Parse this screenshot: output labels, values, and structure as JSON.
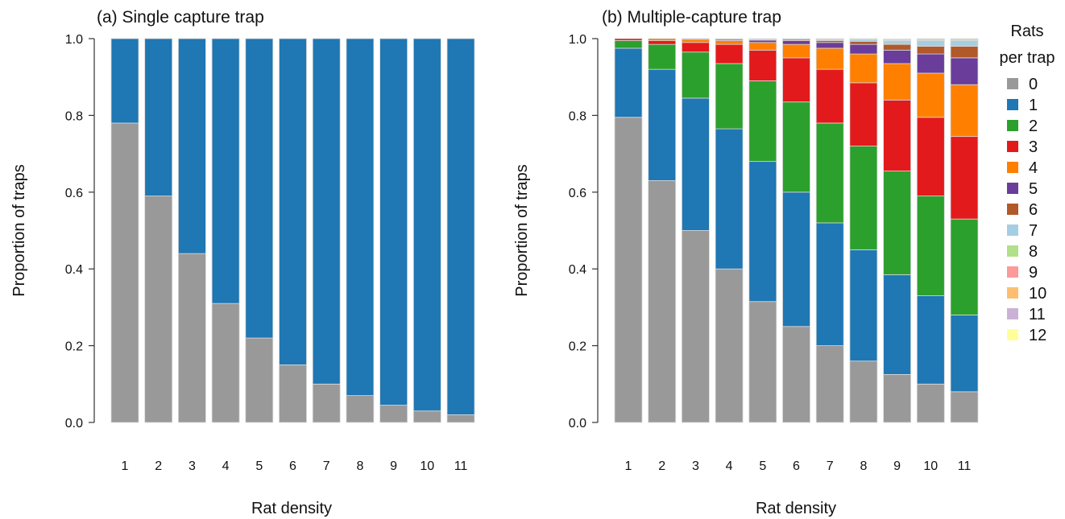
{
  "chart_data": [
    {
      "type": "bar",
      "stacked": true,
      "title": "(a) Single capture trap",
      "xlabel": "Rat density",
      "ylabel": "Proportion of traps",
      "ylim": [
        0,
        1
      ],
      "yticks": [
        "0.0",
        "0.2",
        "0.4",
        "0.6",
        "0.8",
        "1.0"
      ],
      "categories": [
        "1",
        "2",
        "3",
        "4",
        "5",
        "6",
        "7",
        "8",
        "9",
        "10",
        "11"
      ],
      "series": [
        {
          "name": "0",
          "color": "#999999",
          "values": [
            0.78,
            0.59,
            0.44,
            0.31,
            0.22,
            0.15,
            0.1,
            0.07,
            0.045,
            0.03,
            0.02
          ]
        },
        {
          "name": "1",
          "color": "#1f77b4",
          "values": [
            0.22,
            0.41,
            0.56,
            0.69,
            0.78,
            0.85,
            0.9,
            0.93,
            0.955,
            0.97,
            0.98
          ]
        }
      ]
    },
    {
      "type": "bar",
      "stacked": true,
      "title": "(b) Multiple-capture trap",
      "xlabel": "Rat density",
      "ylabel": "Proportion of traps",
      "ylim": [
        0,
        1
      ],
      "yticks": [
        "0.0",
        "0.2",
        "0.4",
        "0.6",
        "0.8",
        "1.0"
      ],
      "categories": [
        "1",
        "2",
        "3",
        "4",
        "5",
        "6",
        "7",
        "8",
        "9",
        "10",
        "11"
      ],
      "series": [
        {
          "name": "0",
          "color": "#999999",
          "values": [
            0.795,
            0.63,
            0.5,
            0.4,
            0.315,
            0.25,
            0.2,
            0.16,
            0.125,
            0.1,
            0.08
          ]
        },
        {
          "name": "1",
          "color": "#1f77b4",
          "values": [
            0.18,
            0.29,
            0.345,
            0.365,
            0.365,
            0.35,
            0.32,
            0.29,
            0.26,
            0.23,
            0.2
          ]
        },
        {
          "name": "2",
          "color": "#2ca02c",
          "values": [
            0.02,
            0.065,
            0.12,
            0.17,
            0.21,
            0.235,
            0.26,
            0.27,
            0.27,
            0.26,
            0.25
          ]
        },
        {
          "name": "3",
          "color": "#e31a1c",
          "values": [
            0.005,
            0.01,
            0.025,
            0.05,
            0.08,
            0.115,
            0.14,
            0.165,
            0.185,
            0.205,
            0.215
          ]
        },
        {
          "name": "4",
          "color": "#ff7f00",
          "values": [
            0,
            0.005,
            0.008,
            0.01,
            0.02,
            0.035,
            0.055,
            0.075,
            0.095,
            0.115,
            0.135
          ]
        },
        {
          "name": "5",
          "color": "#6a3d9a",
          "values": [
            0,
            0,
            0.002,
            0.003,
            0.006,
            0.01,
            0.015,
            0.025,
            0.035,
            0.05,
            0.07
          ]
        },
        {
          "name": "6",
          "color": "#b15928",
          "values": [
            0,
            0,
            0,
            0.001,
            0.002,
            0.003,
            0.005,
            0.008,
            0.015,
            0.02,
            0.03
          ]
        },
        {
          "name": "7",
          "color": "#a6cee3",
          "values": [
            0,
            0,
            0,
            0.001,
            0.002,
            0.002,
            0.003,
            0.005,
            0.01,
            0.015,
            0.015
          ]
        },
        {
          "name": "8",
          "color": "#b2df8a",
          "values": [
            0,
            0,
            0,
            0,
            0,
            0,
            0.001,
            0.001,
            0.002,
            0.003,
            0.003
          ]
        },
        {
          "name": "9",
          "color": "#fb9a99",
          "values": [
            0,
            0,
            0,
            0,
            0,
            0,
            0.001,
            0.001,
            0.001,
            0.001,
            0.001
          ]
        },
        {
          "name": "10",
          "color": "#fdbf6f",
          "values": [
            0,
            0,
            0,
            0,
            0,
            0,
            0,
            0,
            0.001,
            0.001,
            0.001
          ]
        },
        {
          "name": "11",
          "color": "#cab2d6",
          "values": [
            0,
            0,
            0,
            0,
            0,
            0,
            0,
            0,
            0,
            0,
            0
          ]
        },
        {
          "name": "12",
          "color": "#ffff99",
          "values": [
            0,
            0,
            0,
            0,
            0,
            0,
            0,
            0,
            0,
            0,
            0
          ]
        }
      ],
      "legend": {
        "title_line1": "Rats",
        "title_line2": "per trap",
        "placement": "right"
      }
    }
  ]
}
